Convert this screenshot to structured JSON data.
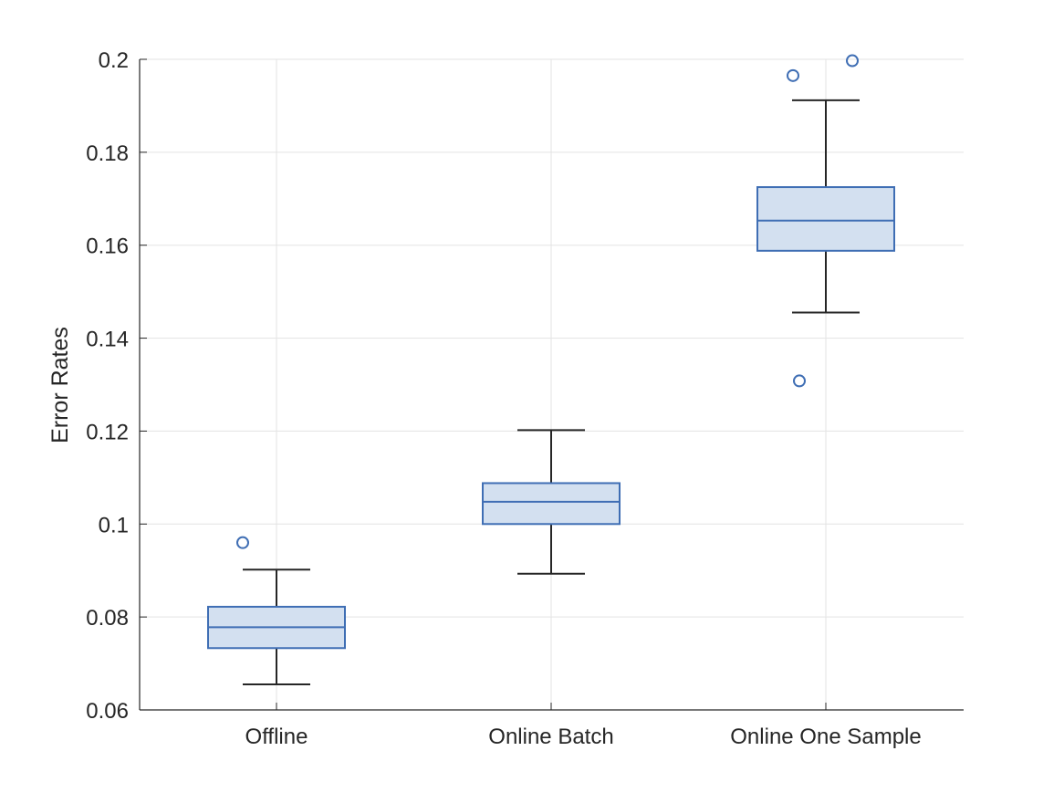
{
  "colors": {
    "grid": "#e3e3e3",
    "axis": "#262626",
    "text": "#262626",
    "box_stroke": "#3f6eb4",
    "box_fill": "#d3e0f0",
    "whisker": "#262626",
    "outlier": "#3f6eb4",
    "background": "#ffffff"
  },
  "chart_data": {
    "type": "boxplot",
    "title": "",
    "xlabel": "",
    "ylabel": "Error Rates",
    "ylim": [
      0.06,
      0.2
    ],
    "yticks": [
      0.06,
      0.08,
      0.1,
      0.12,
      0.14,
      0.16,
      0.18,
      0.2
    ],
    "ytick_labels": [
      "0.06",
      "0.08",
      "0.1",
      "0.12",
      "0.14",
      "0.16",
      "0.18",
      "0.2"
    ],
    "grid": true,
    "categories": [
      "Offline",
      "Online Batch",
      "Online One Sample"
    ],
    "boxes": [
      {
        "category": "Offline",
        "whisker_low": 0.0655,
        "q1": 0.0733,
        "median": 0.0778,
        "q3": 0.0822,
        "whisker_high": 0.0902,
        "outliers": [
          0.096
        ]
      },
      {
        "category": "Online Batch",
        "whisker_low": 0.0893,
        "q1": 0.1,
        "median": 0.1048,
        "q3": 0.1088,
        "whisker_high": 0.1202,
        "outliers": []
      },
      {
        "category": "Online One Sample",
        "whisker_low": 0.1455,
        "q1": 0.1588,
        "median": 0.1653,
        "q3": 0.1725,
        "whisker_high": 0.1912,
        "outliers": [
          0.1965,
          0.1997,
          0.1308
        ]
      }
    ]
  }
}
